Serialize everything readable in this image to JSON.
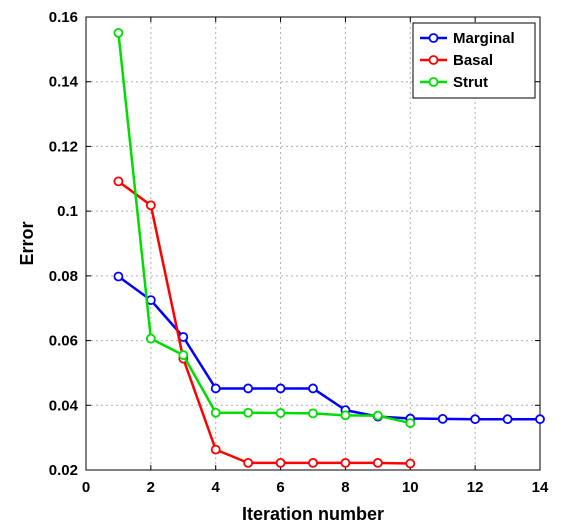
{
  "chart_data": {
    "type": "line",
    "title": "",
    "xlabel": "Iteration number",
    "ylabel": "Error",
    "xlim": [
      0,
      14
    ],
    "ylim": [
      0.02,
      0.16
    ],
    "xticks": [
      0,
      2,
      4,
      6,
      8,
      10,
      12,
      14
    ],
    "xtick_labels": [
      "0",
      "2",
      "4",
      "6",
      "8",
      "10",
      "12",
      "14"
    ],
    "yticks": [
      0.02,
      0.04,
      0.06,
      0.08,
      0.1,
      0.12,
      0.14,
      0.16
    ],
    "ytick_labels": [
      "0.02",
      "0.04",
      "0.06",
      "0.08",
      "0.1",
      "0.12",
      "0.14",
      "0.16"
    ],
    "grid": true,
    "legend_position": "top-right",
    "series": [
      {
        "name": "Marginal",
        "color": "#0000ff",
        "x": [
          1,
          2,
          3,
          4,
          5,
          6,
          7,
          8,
          9,
          10,
          11,
          12,
          13,
          14
        ],
        "y": [
          0.0798,
          0.0725,
          0.0611,
          0.0452,
          0.0452,
          0.0452,
          0.0452,
          0.0385,
          0.0365,
          0.0359,
          0.0358,
          0.0357,
          0.0357,
          0.0357
        ]
      },
      {
        "name": "Basal",
        "color": "#ff0000",
        "x": [
          1,
          2,
          3,
          4,
          5,
          6,
          7,
          8,
          9,
          10
        ],
        "y": [
          0.1092,
          0.1018,
          0.0544,
          0.0263,
          0.0222,
          0.0222,
          0.0222,
          0.0222,
          0.0222,
          0.022
        ]
      },
      {
        "name": "Strut",
        "color": "#00dd00",
        "x": [
          1,
          2,
          3,
          4,
          5,
          6,
          7,
          8,
          9,
          10
        ],
        "y": [
          0.1551,
          0.0606,
          0.0555,
          0.0377,
          0.0377,
          0.0376,
          0.0375,
          0.0369,
          0.0368,
          0.0345
        ]
      }
    ]
  }
}
